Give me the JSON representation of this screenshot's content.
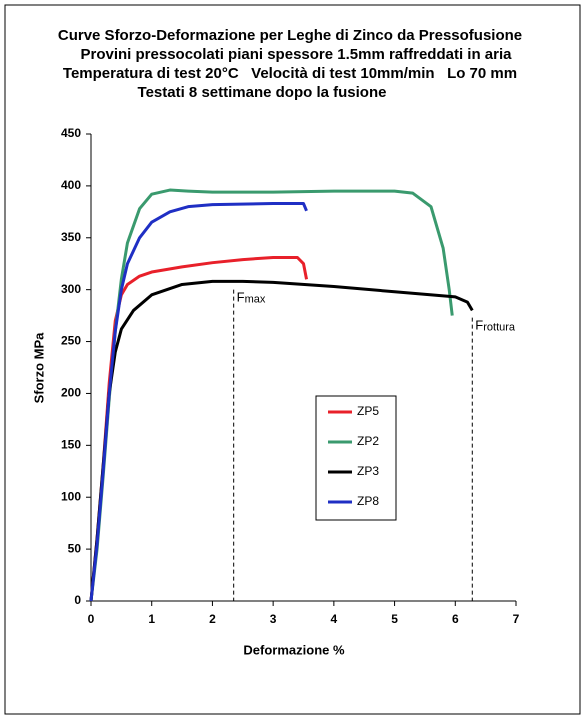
{
  "chart_data": {
    "type": "line",
    "title_lines": [
      "Curve Sforzo-Deformazione per Leghe di Zinco da Pressofusione",
      "Provini pressocolati piani spessore 1.5mm raffreddati in aria",
      "Temperatura di test 20°C   Velocità di test 10mm/min   Lo 70 mm",
      "Testati 8 settimane dopo la fusione"
    ],
    "x_label": "Deformazione %",
    "y_label": "Sforzo MPa",
    "xlim": [
      0,
      7
    ],
    "xticks": [
      0,
      1,
      2,
      3,
      4,
      5,
      6,
      7
    ],
    "ylim": [
      0,
      450
    ],
    "yticks": [
      0,
      50,
      100,
      150,
      200,
      250,
      300,
      350,
      400,
      450
    ],
    "grid": false,
    "series": [
      {
        "name": "ZP5",
        "color": "#e8202a",
        "x": [
          0,
          0.1,
          0.2,
          0.3,
          0.4,
          0.5,
          0.6,
          0.8,
          1.0,
          1.5,
          2.0,
          2.5,
          3.0,
          3.4,
          3.5,
          3.55
        ],
        "values": [
          0,
          60,
          130,
          210,
          270,
          295,
          305,
          313,
          317,
          322,
          326,
          329,
          331,
          331,
          325,
          310
        ]
      },
      {
        "name": "ZP2",
        "color": "#3a9a6e",
        "x": [
          0,
          0.1,
          0.2,
          0.3,
          0.4,
          0.5,
          0.6,
          0.8,
          1.0,
          1.3,
          1.6,
          2,
          3,
          4,
          5,
          5.3,
          5.6,
          5.8,
          5.9,
          5.95
        ],
        "values": [
          0,
          50,
          120,
          195,
          260,
          310,
          345,
          378,
          392,
          396,
          395,
          394,
          394,
          395,
          395,
          393,
          380,
          340,
          300,
          275
        ]
      },
      {
        "name": "ZP3",
        "color": "#000000",
        "x": [
          0,
          0.1,
          0.2,
          0.3,
          0.4,
          0.5,
          0.7,
          1.0,
          1.5,
          2,
          2.5,
          3,
          4,
          5,
          6,
          6.2,
          6.28
        ],
        "values": [
          0,
          60,
          130,
          200,
          240,
          262,
          280,
          295,
          305,
          308,
          308,
          307,
          303,
          298,
          293,
          288,
          280
        ]
      },
      {
        "name": "ZP8",
        "color": "#1f2fc4",
        "x": [
          0,
          0.1,
          0.2,
          0.3,
          0.4,
          0.5,
          0.6,
          0.8,
          1.0,
          1.3,
          1.6,
          2,
          3,
          3.5,
          3.55
        ],
        "values": [
          0,
          55,
          125,
          200,
          260,
          300,
          325,
          350,
          365,
          375,
          380,
          382,
          383,
          383,
          376
        ]
      }
    ],
    "annotations": [
      {
        "label": "F",
        "sub": "max",
        "x": 2.35,
        "y": 300
      },
      {
        "label": "F",
        "sub": "rottura",
        "x": 6.28,
        "y": 273
      }
    ]
  }
}
